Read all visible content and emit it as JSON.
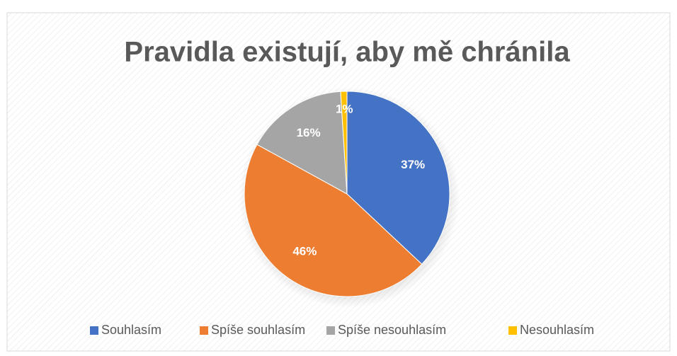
{
  "chart_data": {
    "type": "pie",
    "title": "Pravidla existují, aby mě chránila",
    "categories": [
      "Souhlasím",
      "Spíše souhlasím",
      "Spíše nesouhlasím",
      "Nesouhlasím"
    ],
    "values": [
      37,
      46,
      16,
      1
    ],
    "value_labels": [
      "37%",
      "46%",
      "16%",
      "1%"
    ],
    "colors": [
      "#4472c4",
      "#ed7d31",
      "#a5a5a5",
      "#ffc000"
    ],
    "legend": "bottom"
  }
}
